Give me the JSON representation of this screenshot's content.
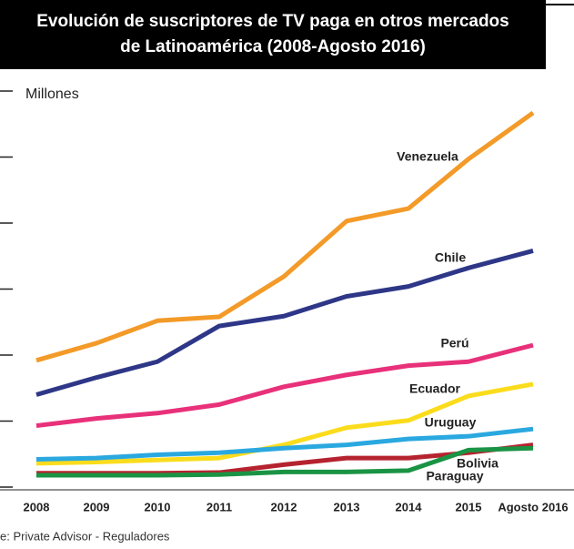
{
  "chart_data": {
    "type": "line",
    "title": [
      "Evolución de suscriptores de TV paga en otros mercados",
      "de Latinoamérica (2008-Agosto 2016)"
    ],
    "y_label": "Millones",
    "source": "e: Private Advisor - Reguladores",
    "categories": [
      "2008",
      "2009",
      "2010",
      "2011",
      "2012",
      "2013",
      "2014",
      "2015",
      "Agosto 2016"
    ],
    "ylim": [
      0,
      6
    ],
    "yticks": [
      0,
      1,
      2,
      3,
      4,
      5,
      6
    ],
    "series": [
      {
        "name": "Venezuela",
        "color": "#f39a28",
        "values": [
          1.92,
          2.18,
          2.52,
          2.58,
          3.19,
          4.03,
          4.22,
          4.97,
          5.67
        ]
      },
      {
        "name": "Chile",
        "color": "#2e3787",
        "values": [
          1.4,
          1.66,
          1.9,
          2.44,
          2.59,
          2.89,
          3.04,
          3.32,
          3.58
        ]
      },
      {
        "name": "Perú",
        "color": "#e8317a",
        "values": [
          0.93,
          1.04,
          1.12,
          1.25,
          1.52,
          1.7,
          1.84,
          1.9,
          2.15
        ]
      },
      {
        "name": "Ecuador",
        "color": "#fbdc1c",
        "values": [
          0.36,
          0.38,
          0.41,
          0.44,
          0.64,
          0.9,
          1.01,
          1.38,
          1.56
        ]
      },
      {
        "name": "Uruguay",
        "color": "#2aa8e0",
        "values": [
          0.42,
          0.44,
          0.49,
          0.52,
          0.59,
          0.64,
          0.73,
          0.77,
          0.88
        ]
      },
      {
        "name": "Bolivia",
        "color": "#b5232f",
        "values": [
          0.21,
          0.21,
          0.21,
          0.22,
          0.34,
          0.44,
          0.44,
          0.52,
          0.64
        ]
      },
      {
        "name": "Paraguay",
        "color": "#1a9444",
        "values": [
          0.18,
          0.18,
          0.18,
          0.19,
          0.23,
          0.23,
          0.25,
          0.56,
          0.59
        ]
      }
    ]
  }
}
